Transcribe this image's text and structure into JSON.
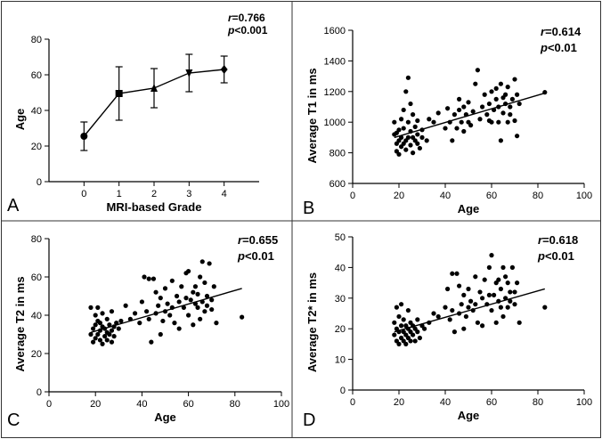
{
  "chart_data": [
    {
      "id": "A",
      "type": "line",
      "panel_label": "A",
      "xlabel": "MRI-based Grade",
      "ylabel": "Age",
      "xlim": [
        -1,
        5
      ],
      "ylim": [
        0,
        80
      ],
      "xticks": [
        0,
        1,
        2,
        3,
        4
      ],
      "yticks": [
        0,
        20,
        40,
        60,
        80
      ],
      "annotation": {
        "r": "r=0.766",
        "p": "p<0.001"
      },
      "points": [
        {
          "x": 0,
          "y": 25.5,
          "err": 8,
          "marker": "circle"
        },
        {
          "x": 1,
          "y": 49.5,
          "err": 15,
          "marker": "square"
        },
        {
          "x": 2,
          "y": 52.5,
          "err": 11,
          "marker": "triangle-up"
        },
        {
          "x": 3,
          "y": 61,
          "err": 10.5,
          "marker": "triangle-down"
        },
        {
          "x": 4,
          "y": 63,
          "err": 7.5,
          "marker": "diamond"
        }
      ]
    },
    {
      "id": "B",
      "type": "scatter",
      "panel_label": "B",
      "xlabel": "Age",
      "ylabel": "Average T1 in ms",
      "xlim": [
        0,
        100
      ],
      "ylim": [
        600,
        1600
      ],
      "xticks": [
        0,
        20,
        40,
        60,
        80,
        100
      ],
      "yticks": [
        600,
        800,
        1000,
        1200,
        1400,
        1600
      ],
      "annotation": {
        "r": "r=0.614",
        "p": "p<0.01"
      },
      "fit": {
        "x": [
          18,
          83
        ],
        "y": [
          900,
          1190
        ]
      },
      "points": [
        [
          18,
          920
        ],
        [
          18,
          1000
        ],
        [
          19,
          810
        ],
        [
          19,
          860
        ],
        [
          19,
          930
        ],
        [
          20,
          790
        ],
        [
          20,
          880
        ],
        [
          20,
          950
        ],
        [
          21,
          840
        ],
        [
          21,
          900
        ],
        [
          21,
          1020
        ],
        [
          22,
          860
        ],
        [
          22,
          960
        ],
        [
          22,
          1080
        ],
        [
          23,
          820
        ],
        [
          23,
          880
        ],
        [
          23,
          1200
        ],
        [
          24,
          900
        ],
        [
          24,
          1000
        ],
        [
          24,
          1290
        ],
        [
          25,
          850
        ],
        [
          25,
          940
        ],
        [
          25,
          1120
        ],
        [
          26,
          800
        ],
        [
          26,
          900
        ],
        [
          26,
          1050
        ],
        [
          27,
          880
        ],
        [
          27,
          970
        ],
        [
          28,
          860
        ],
        [
          28,
          920
        ],
        [
          28,
          1010
        ],
        [
          29,
          830
        ],
        [
          30,
          900
        ],
        [
          30,
          950
        ],
        [
          32,
          880
        ],
        [
          33,
          1020
        ],
        [
          35,
          1000
        ],
        [
          37,
          1060
        ],
        [
          40,
          960
        ],
        [
          41,
          1090
        ],
        [
          42,
          1000
        ],
        [
          43,
          880
        ],
        [
          44,
          1050
        ],
        [
          45,
          960
        ],
        [
          46,
          1080
        ],
        [
          46,
          1150
        ],
        [
          47,
          1000
        ],
        [
          48,
          940
        ],
        [
          48,
          1100
        ],
        [
          49,
          1050
        ],
        [
          50,
          1000
        ],
        [
          50,
          1130
        ],
        [
          51,
          980
        ],
        [
          52,
          1070
        ],
        [
          53,
          1250
        ],
        [
          54,
          1340
        ],
        [
          55,
          1020
        ],
        [
          56,
          1100
        ],
        [
          57,
          1180
        ],
        [
          58,
          1050
        ],
        [
          59,
          1120
        ],
        [
          59,
          1010
        ],
        [
          60,
          1000
        ],
        [
          60,
          1200
        ],
        [
          61,
          1080
        ],
        [
          62,
          1150
        ],
        [
          62,
          1220
        ],
        [
          63,
          1100
        ],
        [
          63,
          1000
        ],
        [
          64,
          1250
        ],
        [
          64,
          880
        ],
        [
          65,
          1160
        ],
        [
          65,
          1060
        ],
        [
          66,
          1180
        ],
        [
          66,
          1120
        ],
        [
          67,
          1000
        ],
        [
          67,
          1230
        ],
        [
          68,
          1100
        ],
        [
          68,
          1050
        ],
        [
          69,
          1150
        ],
        [
          70,
          1010
        ],
        [
          70,
          1280
        ],
        [
          71,
          910
        ],
        [
          71,
          1180
        ],
        [
          72,
          1120
        ],
        [
          83,
          1195
        ]
      ]
    },
    {
      "id": "C",
      "type": "scatter",
      "panel_label": "C",
      "xlabel": "Age",
      "ylabel": "Average T2 in ms",
      "xlim": [
        0,
        100
      ],
      "ylim": [
        0,
        80
      ],
      "xticks": [
        0,
        20,
        40,
        60,
        80,
        100
      ],
      "yticks": [
        0,
        20,
        40,
        60,
        80
      ],
      "annotation": {
        "r": "r=0.655",
        "p": "p<0.01"
      },
      "fit": {
        "x": [
          18,
          83
        ],
        "y": [
          31,
          54
        ]
      },
      "points": [
        [
          18,
          30
        ],
        [
          18,
          44
        ],
        [
          19,
          33
        ],
        [
          19,
          26
        ],
        [
          20,
          35
        ],
        [
          20,
          28
        ],
        [
          20,
          40
        ],
        [
          21,
          30
        ],
        [
          21,
          37
        ],
        [
          21,
          44
        ],
        [
          22,
          27
        ],
        [
          22,
          32
        ],
        [
          22,
          36
        ],
        [
          23,
          25
        ],
        [
          23,
          34
        ],
        [
          23,
          41
        ],
        [
          24,
          29
        ],
        [
          24,
          33
        ],
        [
          25,
          27
        ],
        [
          25,
          31
        ],
        [
          25,
          38
        ],
        [
          26,
          30
        ],
        [
          26,
          35
        ],
        [
          27,
          26
        ],
        [
          27,
          32
        ],
        [
          27,
          42
        ],
        [
          28,
          34
        ],
        [
          28,
          29
        ],
        [
          29,
          36
        ],
        [
          30,
          33
        ],
        [
          31,
          37
        ],
        [
          33,
          45
        ],
        [
          35,
          38
        ],
        [
          37,
          41
        ],
        [
          39,
          36
        ],
        [
          40,
          47
        ],
        [
          41,
          60
        ],
        [
          42,
          42
        ],
        [
          43,
          59
        ],
        [
          43,
          38
        ],
        [
          44,
          26
        ],
        [
          45,
          59
        ],
        [
          46,
          52
        ],
        [
          46,
          41
        ],
        [
          47,
          45
        ],
        [
          48,
          30
        ],
        [
          48,
          49
        ],
        [
          49,
          37
        ],
        [
          50,
          54
        ],
        [
          50,
          42
        ],
        [
          51,
          46
        ],
        [
          52,
          40
        ],
        [
          53,
          58
        ],
        [
          53,
          44
        ],
        [
          54,
          36
        ],
        [
          55,
          50
        ],
        [
          56,
          47
        ],
        [
          56,
          33
        ],
        [
          57,
          55
        ],
        [
          58,
          44
        ],
        [
          59,
          49
        ],
        [
          59,
          62
        ],
        [
          60,
          63
        ],
        [
          60,
          40
        ],
        [
          61,
          48
        ],
        [
          62,
          52
        ],
        [
          62,
          35
        ],
        [
          63,
          46
        ],
        [
          63,
          55
        ],
        [
          64,
          44
        ],
        [
          64,
          51
        ],
        [
          65,
          60
        ],
        [
          65,
          38
        ],
        [
          66,
          68
        ],
        [
          66,
          47
        ],
        [
          67,
          42
        ],
        [
          67,
          57
        ],
        [
          68,
          50
        ],
        [
          68,
          45
        ],
        [
          69,
          67
        ],
        [
          70,
          48
        ],
        [
          70,
          43
        ],
        [
          71,
          55
        ],
        [
          72,
          36
        ],
        [
          83,
          39
        ]
      ]
    },
    {
      "id": "D",
      "type": "scatter",
      "panel_label": "D",
      "xlabel": "Age",
      "ylabel": "Average T2* in ms",
      "xlim": [
        0,
        100
      ],
      "ylim": [
        0,
        50
      ],
      "xticks": [
        0,
        20,
        40,
        60,
        80,
        100
      ],
      "yticks": [
        0,
        10,
        20,
        30,
        40,
        50
      ],
      "annotation": {
        "r": "r=0.618",
        "p": "p<0.01"
      },
      "fit": {
        "x": [
          18,
          83
        ],
        "y": [
          19,
          33
        ]
      },
      "points": [
        [
          18,
          18
        ],
        [
          18,
          22
        ],
        [
          19,
          16
        ],
        [
          19,
          20
        ],
        [
          19,
          27
        ],
        [
          20,
          15
        ],
        [
          20,
          19
        ],
        [
          20,
          24
        ],
        [
          21,
          17
        ],
        [
          21,
          21
        ],
        [
          21,
          28
        ],
        [
          22,
          16
        ],
        [
          22,
          19
        ],
        [
          22,
          23
        ],
        [
          23,
          15
        ],
        [
          23,
          18
        ],
        [
          23,
          21
        ],
        [
          24,
          17
        ],
        [
          24,
          20
        ],
        [
          24,
          26
        ],
        [
          25,
          16
        ],
        [
          25,
          19
        ],
        [
          25,
          22
        ],
        [
          26,
          18
        ],
        [
          26,
          21
        ],
        [
          27,
          16
        ],
        [
          27,
          20
        ],
        [
          28,
          19
        ],
        [
          28,
          23
        ],
        [
          29,
          17
        ],
        [
          30,
          21
        ],
        [
          31,
          20
        ],
        [
          33,
          22
        ],
        [
          35,
          25
        ],
        [
          37,
          24
        ],
        [
          40,
          27
        ],
        [
          41,
          33
        ],
        [
          42,
          23
        ],
        [
          43,
          38
        ],
        [
          43,
          26
        ],
        [
          44,
          19
        ],
        [
          45,
          38
        ],
        [
          46,
          34
        ],
        [
          46,
          25
        ],
        [
          47,
          28
        ],
        [
          48,
          20
        ],
        [
          48,
          31
        ],
        [
          49,
          24
        ],
        [
          50,
          33
        ],
        [
          50,
          27
        ],
        [
          51,
          29
        ],
        [
          52,
          26
        ],
        [
          53,
          37
        ],
        [
          53,
          28
        ],
        [
          54,
          22
        ],
        [
          55,
          32
        ],
        [
          56,
          30
        ],
        [
          56,
          21
        ],
        [
          57,
          36
        ],
        [
          58,
          28
        ],
        [
          59,
          31
        ],
        [
          59,
          40
        ],
        [
          60,
          44
        ],
        [
          60,
          26
        ],
        [
          61,
          31
        ],
        [
          62,
          35
        ],
        [
          62,
          22
        ],
        [
          63,
          29
        ],
        [
          63,
          36
        ],
        [
          64,
          27
        ],
        [
          64,
          33
        ],
        [
          65,
          40
        ],
        [
          65,
          24
        ],
        [
          66,
          37
        ],
        [
          66,
          30
        ],
        [
          67,
          27
        ],
        [
          67,
          35
        ],
        [
          68,
          32
        ],
        [
          68,
          29
        ],
        [
          69,
          40
        ],
        [
          70,
          32
        ],
        [
          70,
          28
        ],
        [
          71,
          35
        ],
        [
          72,
          22
        ],
        [
          83,
          27
        ]
      ]
    }
  ]
}
